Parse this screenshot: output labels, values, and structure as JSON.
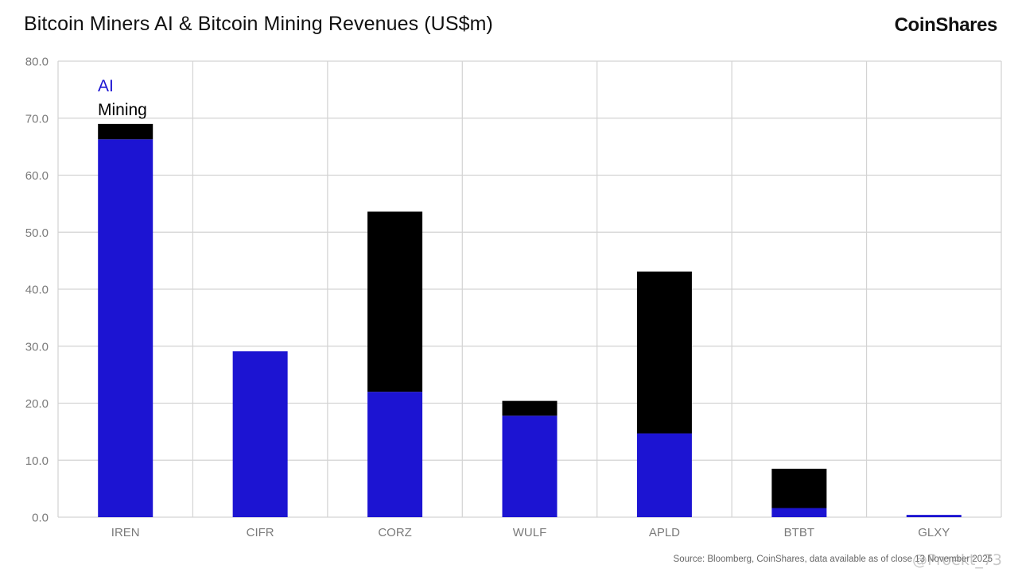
{
  "header": {
    "title": "Bitcoin Miners AI & Bitcoin Mining Revenues (US$m)",
    "brand": "CoinShares"
  },
  "footer": {
    "source": "Source: Bloomberg, CoinShares, data available as of close 13 November 2025",
    "watermark": "@Proekt_73"
  },
  "colors": {
    "ai": "#1C14D2",
    "mining": "#000000",
    "grid": "#D3D3D3",
    "axis_text": "#7A7A7A"
  },
  "chart_data": {
    "type": "bar",
    "stacked": true,
    "title": "Bitcoin Miners AI & Bitcoin Mining Revenues (US$m)",
    "xlabel": "",
    "ylabel": "",
    "ylim": [
      0,
      80
    ],
    "yticks": [
      0,
      10,
      20,
      30,
      40,
      50,
      60,
      70,
      80
    ],
    "ytick_labels": [
      "0.0",
      "10.0",
      "20.0",
      "30.0",
      "40.0",
      "50.0",
      "60.0",
      "70.0",
      "80.0"
    ],
    "grid": true,
    "legend_position": "top-left",
    "categories": [
      "IREN",
      "CIFR",
      "CORZ",
      "WULF",
      "APLD",
      "BTBT",
      "GLXY"
    ],
    "series": [
      {
        "name": "AI",
        "color": "#1C14D2",
        "values": [
          66.3,
          29.1,
          22.0,
          17.8,
          14.7,
          1.6,
          0.4
        ]
      },
      {
        "name": "Mining",
        "color": "#000000",
        "values": [
          2.7,
          0.0,
          31.6,
          2.6,
          28.4,
          6.9,
          0.0
        ]
      }
    ]
  }
}
